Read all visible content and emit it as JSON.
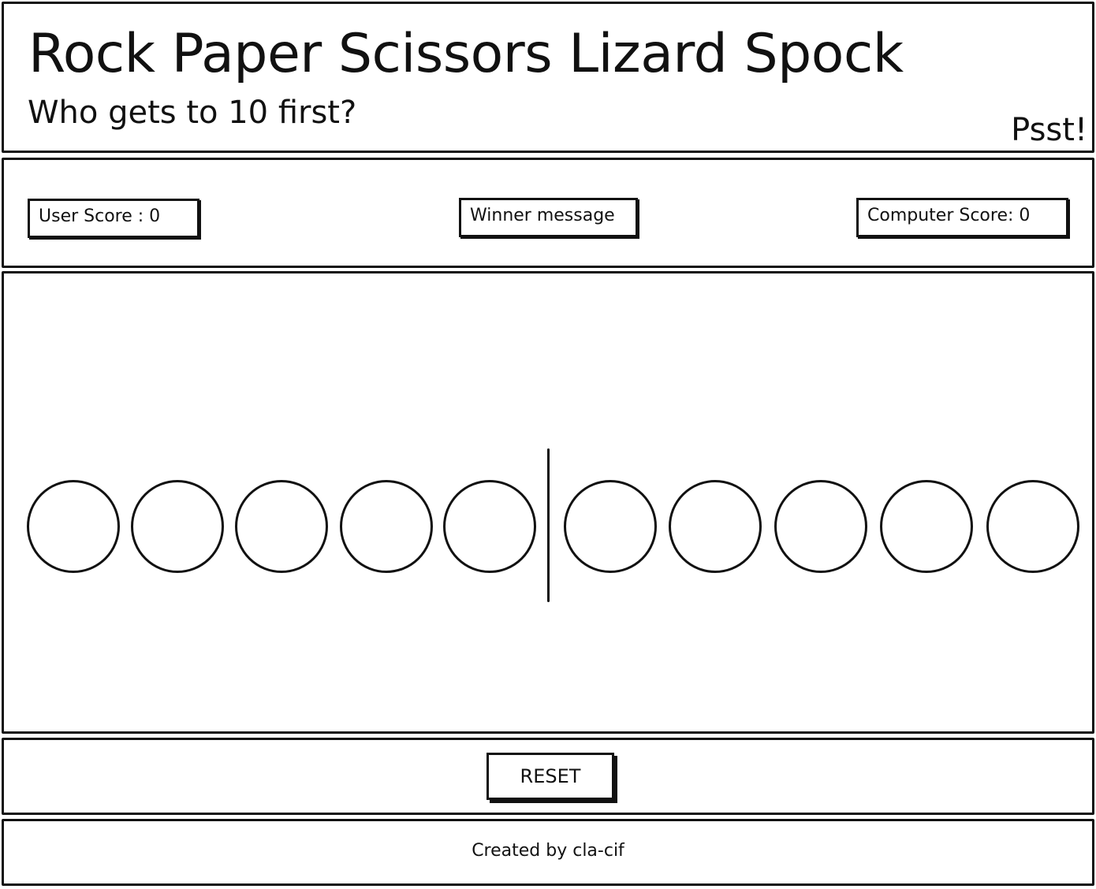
{
  "header": {
    "title": "Rock Paper Scissors Lizard Spock",
    "subtitle": "Who gets to 10 first?",
    "hint_link": "Psst!"
  },
  "scoreboard": {
    "user_score": "User Score : 0",
    "winner_message": "Winner message",
    "computer_score": "Computer Score: 0"
  },
  "controls": {
    "reset_label": "RESET"
  },
  "footer": {
    "credit": "Created by cla-cif"
  }
}
